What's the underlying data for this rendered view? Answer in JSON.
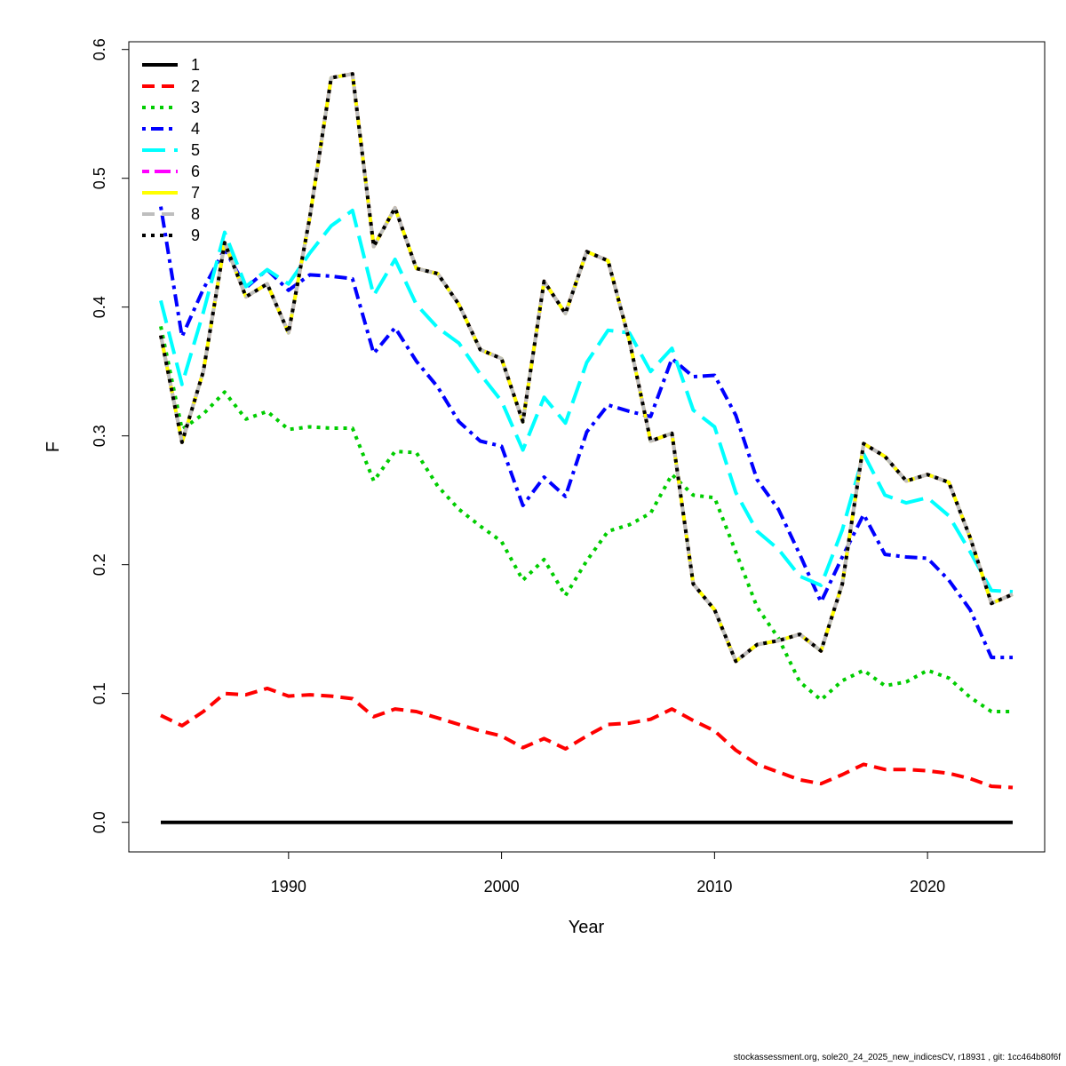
{
  "chart_data": {
    "type": "line",
    "title": "",
    "xlabel": "Year",
    "ylabel": "F",
    "xlim": [
      1982.5,
      2025.5
    ],
    "ylim": [
      -0.023,
      0.606
    ],
    "xticks": [
      1990,
      2000,
      2010,
      2020
    ],
    "yticks": [
      0.0,
      0.1,
      0.2,
      0.3,
      0.4,
      0.5,
      0.6
    ],
    "ytick_labels": [
      "0.0",
      "0.1",
      "0.2",
      "0.3",
      "0.4",
      "0.5",
      "0.6"
    ],
    "legend_position": "top-left",
    "x": [
      1984,
      1985,
      1986,
      1987,
      1988,
      1989,
      1990,
      1991,
      1992,
      1993,
      1994,
      1995,
      1996,
      1997,
      1998,
      1999,
      2000,
      2001,
      2002,
      2003,
      2004,
      2005,
      2006,
      2007,
      2008,
      2009,
      2010,
      2011,
      2012,
      2013,
      2014,
      2015,
      2016,
      2017,
      2018,
      2019,
      2020,
      2021,
      2022,
      2023,
      2024
    ],
    "series": [
      {
        "name": "1",
        "color": "#000000",
        "dash": "solid",
        "values": [
          0,
          0,
          0,
          0,
          0,
          0,
          0,
          0,
          0,
          0,
          0,
          0,
          0,
          0,
          0,
          0,
          0,
          0,
          0,
          0,
          0,
          0,
          0,
          0,
          0,
          0,
          0,
          0,
          0,
          0,
          0,
          0,
          0,
          0,
          0,
          0,
          0,
          0,
          0,
          0,
          0
        ]
      },
      {
        "name": "2",
        "color": "#ff0000",
        "dash": "dashed",
        "values": [
          0.083,
          0.075,
          0.086,
          0.1,
          0.099,
          0.104,
          0.098,
          0.099,
          0.098,
          0.096,
          0.082,
          0.088,
          0.086,
          0.081,
          0.076,
          0.071,
          0.067,
          0.058,
          0.065,
          0.057,
          0.067,
          0.076,
          0.077,
          0.08,
          0.088,
          0.079,
          0.071,
          0.056,
          0.045,
          0.039,
          0.033,
          0.03,
          0.037,
          0.045,
          0.041,
          0.041,
          0.04,
          0.038,
          0.034,
          0.028,
          0.027
        ]
      },
      {
        "name": "3",
        "color": "#00cd00",
        "dash": "dotted",
        "values": [
          0.385,
          0.305,
          0.317,
          0.334,
          0.313,
          0.319,
          0.305,
          0.307,
          0.306,
          0.306,
          0.265,
          0.288,
          0.287,
          0.261,
          0.243,
          0.23,
          0.218,
          0.188,
          0.204,
          0.176,
          0.203,
          0.226,
          0.231,
          0.24,
          0.27,
          0.254,
          0.252,
          0.21,
          0.167,
          0.143,
          0.109,
          0.095,
          0.11,
          0.118,
          0.106,
          0.109,
          0.118,
          0.112,
          0.097,
          0.086,
          0.086
        ]
      },
      {
        "name": "4",
        "color": "#0000ff",
        "dash": "dotdash",
        "values": [
          0.478,
          0.377,
          0.414,
          0.445,
          0.415,
          0.429,
          0.413,
          0.425,
          0.424,
          0.422,
          0.364,
          0.384,
          0.358,
          0.338,
          0.311,
          0.296,
          0.292,
          0.246,
          0.268,
          0.253,
          0.303,
          0.324,
          0.319,
          0.315,
          0.36,
          0.346,
          0.347,
          0.316,
          0.266,
          0.243,
          0.208,
          0.171,
          0.206,
          0.239,
          0.208,
          0.206,
          0.205,
          0.188,
          0.165,
          0.128,
          0.128
        ]
      },
      {
        "name": "5",
        "color": "#00ffff",
        "dash": "longdash",
        "values": [
          0.405,
          0.34,
          0.396,
          0.458,
          0.416,
          0.429,
          0.418,
          0.442,
          0.463,
          0.475,
          0.409,
          0.437,
          0.402,
          0.384,
          0.372,
          0.348,
          0.327,
          0.289,
          0.33,
          0.31,
          0.357,
          0.382,
          0.38,
          0.35,
          0.368,
          0.32,
          0.307,
          0.256,
          0.226,
          0.212,
          0.191,
          0.184,
          0.227,
          0.286,
          0.254,
          0.248,
          0.252,
          0.238,
          0.21,
          0.18,
          0.179
        ]
      },
      {
        "name": "6",
        "color": "#ff00ff",
        "dash": "twodash",
        "values": [
          0.378,
          0.295,
          0.35,
          0.45,
          0.408,
          0.418,
          0.38,
          0.47,
          0.578,
          0.581,
          0.447,
          0.477,
          0.43,
          0.426,
          0.402,
          0.367,
          0.36,
          0.311,
          0.42,
          0.395,
          0.443,
          0.436,
          0.374,
          0.296,
          0.302,
          0.185,
          0.165,
          0.125,
          0.138,
          0.141,
          0.146,
          0.133,
          0.185,
          0.294,
          0.284,
          0.265,
          0.27,
          0.264,
          0.221,
          0.17,
          0.177
        ]
      },
      {
        "name": "7",
        "color": "#ffff00",
        "dash": "solid",
        "values": [
          0.378,
          0.295,
          0.35,
          0.45,
          0.408,
          0.418,
          0.38,
          0.47,
          0.578,
          0.581,
          0.447,
          0.477,
          0.43,
          0.426,
          0.402,
          0.367,
          0.36,
          0.311,
          0.42,
          0.395,
          0.443,
          0.436,
          0.374,
          0.296,
          0.302,
          0.185,
          0.165,
          0.125,
          0.138,
          0.141,
          0.146,
          0.133,
          0.185,
          0.294,
          0.284,
          0.265,
          0.27,
          0.264,
          0.221,
          0.17,
          0.177
        ]
      },
      {
        "name": "8",
        "color": "#bebebe",
        "dash": "dashed",
        "values": [
          0.378,
          0.295,
          0.35,
          0.45,
          0.408,
          0.418,
          0.38,
          0.47,
          0.578,
          0.581,
          0.447,
          0.477,
          0.43,
          0.426,
          0.402,
          0.367,
          0.36,
          0.311,
          0.42,
          0.395,
          0.443,
          0.436,
          0.374,
          0.296,
          0.302,
          0.185,
          0.165,
          0.125,
          0.138,
          0.141,
          0.146,
          0.133,
          0.185,
          0.294,
          0.284,
          0.265,
          0.27,
          0.264,
          0.221,
          0.17,
          0.177
        ]
      },
      {
        "name": "9",
        "color": "#000000",
        "dash": "dotted",
        "values": [
          0.378,
          0.295,
          0.35,
          0.45,
          0.408,
          0.418,
          0.38,
          0.47,
          0.578,
          0.581,
          0.447,
          0.477,
          0.43,
          0.426,
          0.402,
          0.367,
          0.36,
          0.311,
          0.42,
          0.395,
          0.443,
          0.436,
          0.374,
          0.296,
          0.302,
          0.185,
          0.165,
          0.125,
          0.138,
          0.141,
          0.146,
          0.133,
          0.185,
          0.294,
          0.284,
          0.265,
          0.27,
          0.264,
          0.221,
          0.17,
          0.177
        ]
      }
    ]
  },
  "footer": "stockassessment.org, sole20_24_2025_new_indicesCV, r18931 , git: 1cc464b80f6f"
}
